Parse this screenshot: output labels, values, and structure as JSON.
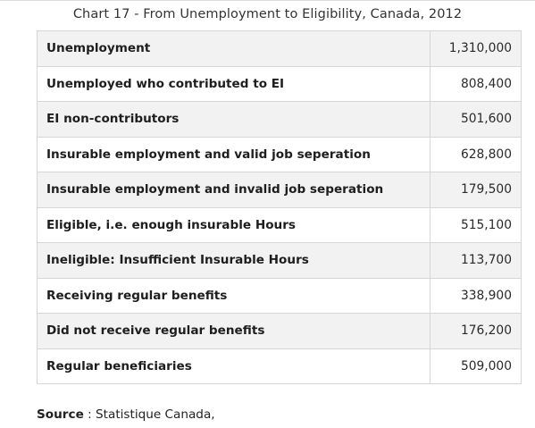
{
  "chart": {
    "title": "Chart 17 - From Unemployment to Eligibility, Canada, 2012"
  },
  "table": {
    "rows": [
      {
        "label": "Unemployment",
        "value": "1,310,000"
      },
      {
        "label": "Unemployed who contributed to EI",
        "value": "808,400"
      },
      {
        "label": "EI non-contributors",
        "value": "501,600"
      },
      {
        "label": "Insurable employment and valid job seperation",
        "value": "628,800"
      },
      {
        "label": "Insurable employment and invalid job seperation",
        "value": "179,500"
      },
      {
        "label": "Eligible, i.e. enough insurable Hours",
        "value": "515,100"
      },
      {
        "label": "Ineligible: Insufficient Insurable Hours",
        "value": "113,700"
      },
      {
        "label": "Receiving regular benefits",
        "value": "338,900"
      },
      {
        "label": "Did not receive regular benefits",
        "value": "176,200"
      },
      {
        "label": "Regular beneficiaries",
        "value": "509,000"
      }
    ]
  },
  "source": {
    "label": "Source",
    "separator": " : ",
    "text": "Statistique Canada,"
  }
}
